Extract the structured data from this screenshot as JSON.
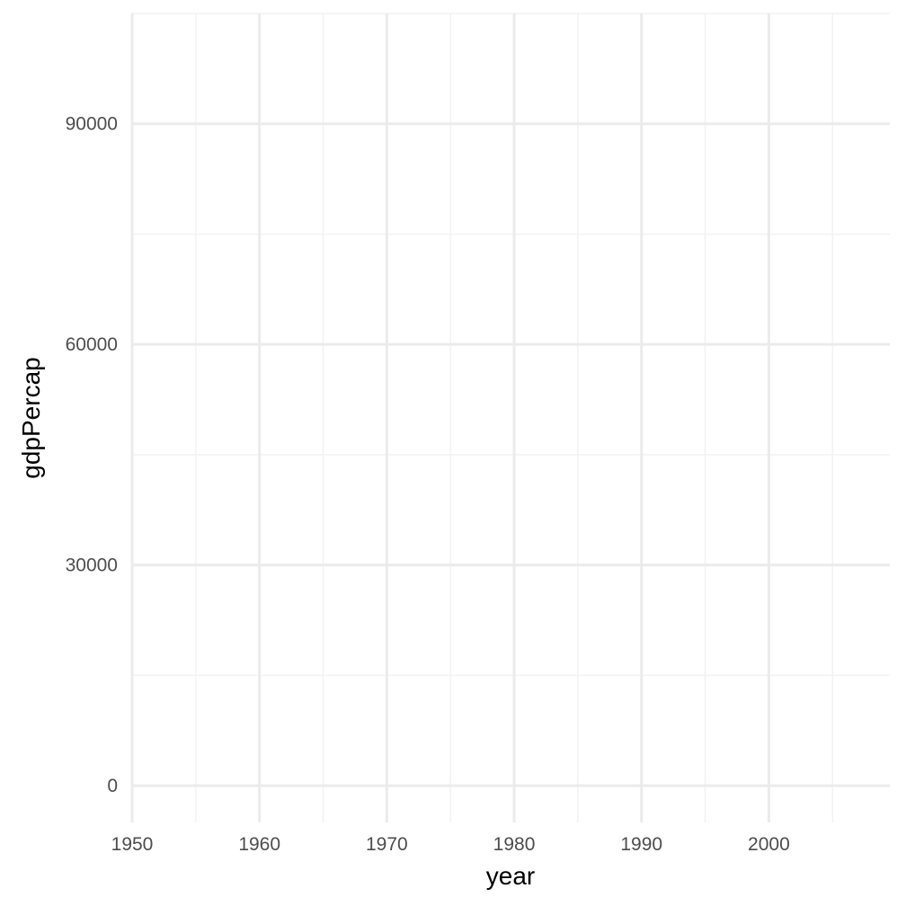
{
  "chart_data": {
    "type": "line",
    "title": "",
    "xlabel": "year",
    "ylabel": "gdpPercap",
    "xlim": [
      1950,
      2009.5
    ],
    "ylim": [
      -5000,
      105000
    ],
    "x_ticks": [
      1950,
      1960,
      1970,
      1980,
      1990,
      2000
    ],
    "x_minor_ticks": [
      1955,
      1965,
      1975,
      1985,
      1995,
      2005
    ],
    "y_ticks": [
      0,
      30000,
      60000,
      90000
    ],
    "y_minor_ticks": [
      15000,
      45000,
      75000,
      105000
    ],
    "series": [],
    "grid": true,
    "legend": "none",
    "colors": {
      "major_grid": "#ebebeb",
      "minor_grid": "#f2f2f2",
      "tick_text": "#4d4d4d",
      "axis_title": "#000000"
    }
  }
}
